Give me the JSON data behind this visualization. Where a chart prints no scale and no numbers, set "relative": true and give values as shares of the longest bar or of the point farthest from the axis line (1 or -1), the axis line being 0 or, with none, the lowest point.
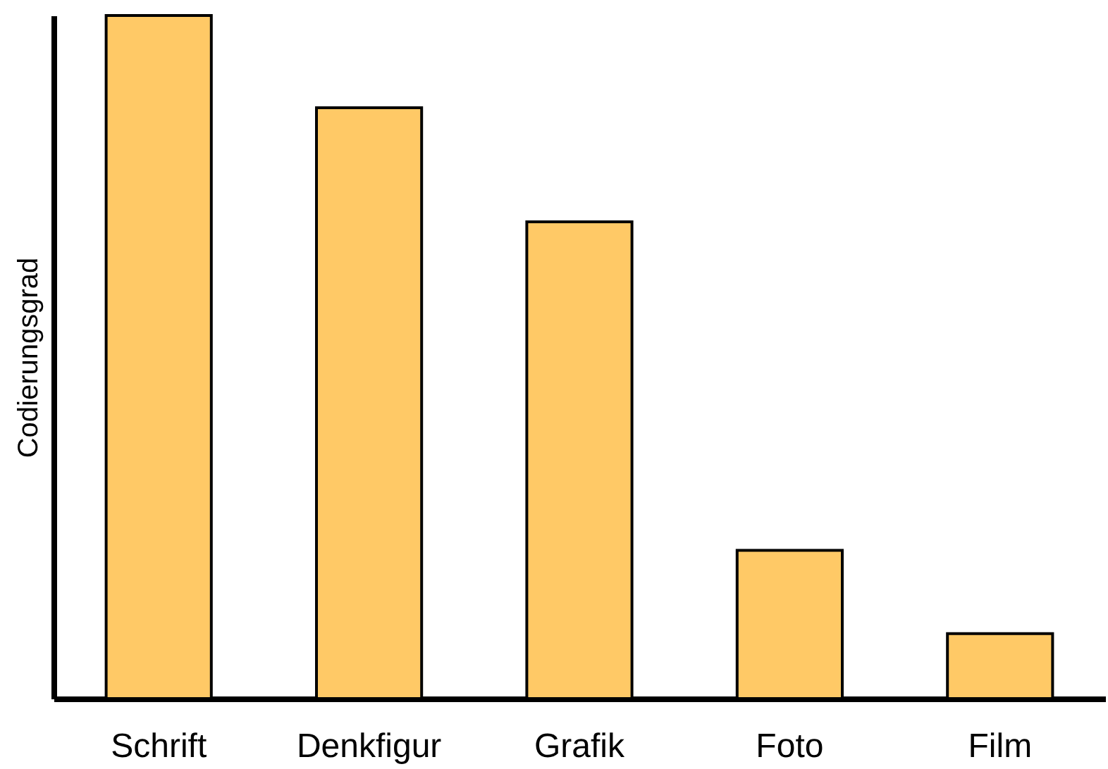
{
  "chart_data": {
    "type": "bar",
    "ylabel": "Codierungsgrad",
    "relative": true,
    "grid": false,
    "categories": [
      "Schrift",
      "Denkfigur",
      "Grafik",
      "Foto",
      "Film"
    ],
    "values": [
      1,
      0.865,
      0.698,
      0.217,
      0.095
    ],
    "color": "#ffc966"
  }
}
